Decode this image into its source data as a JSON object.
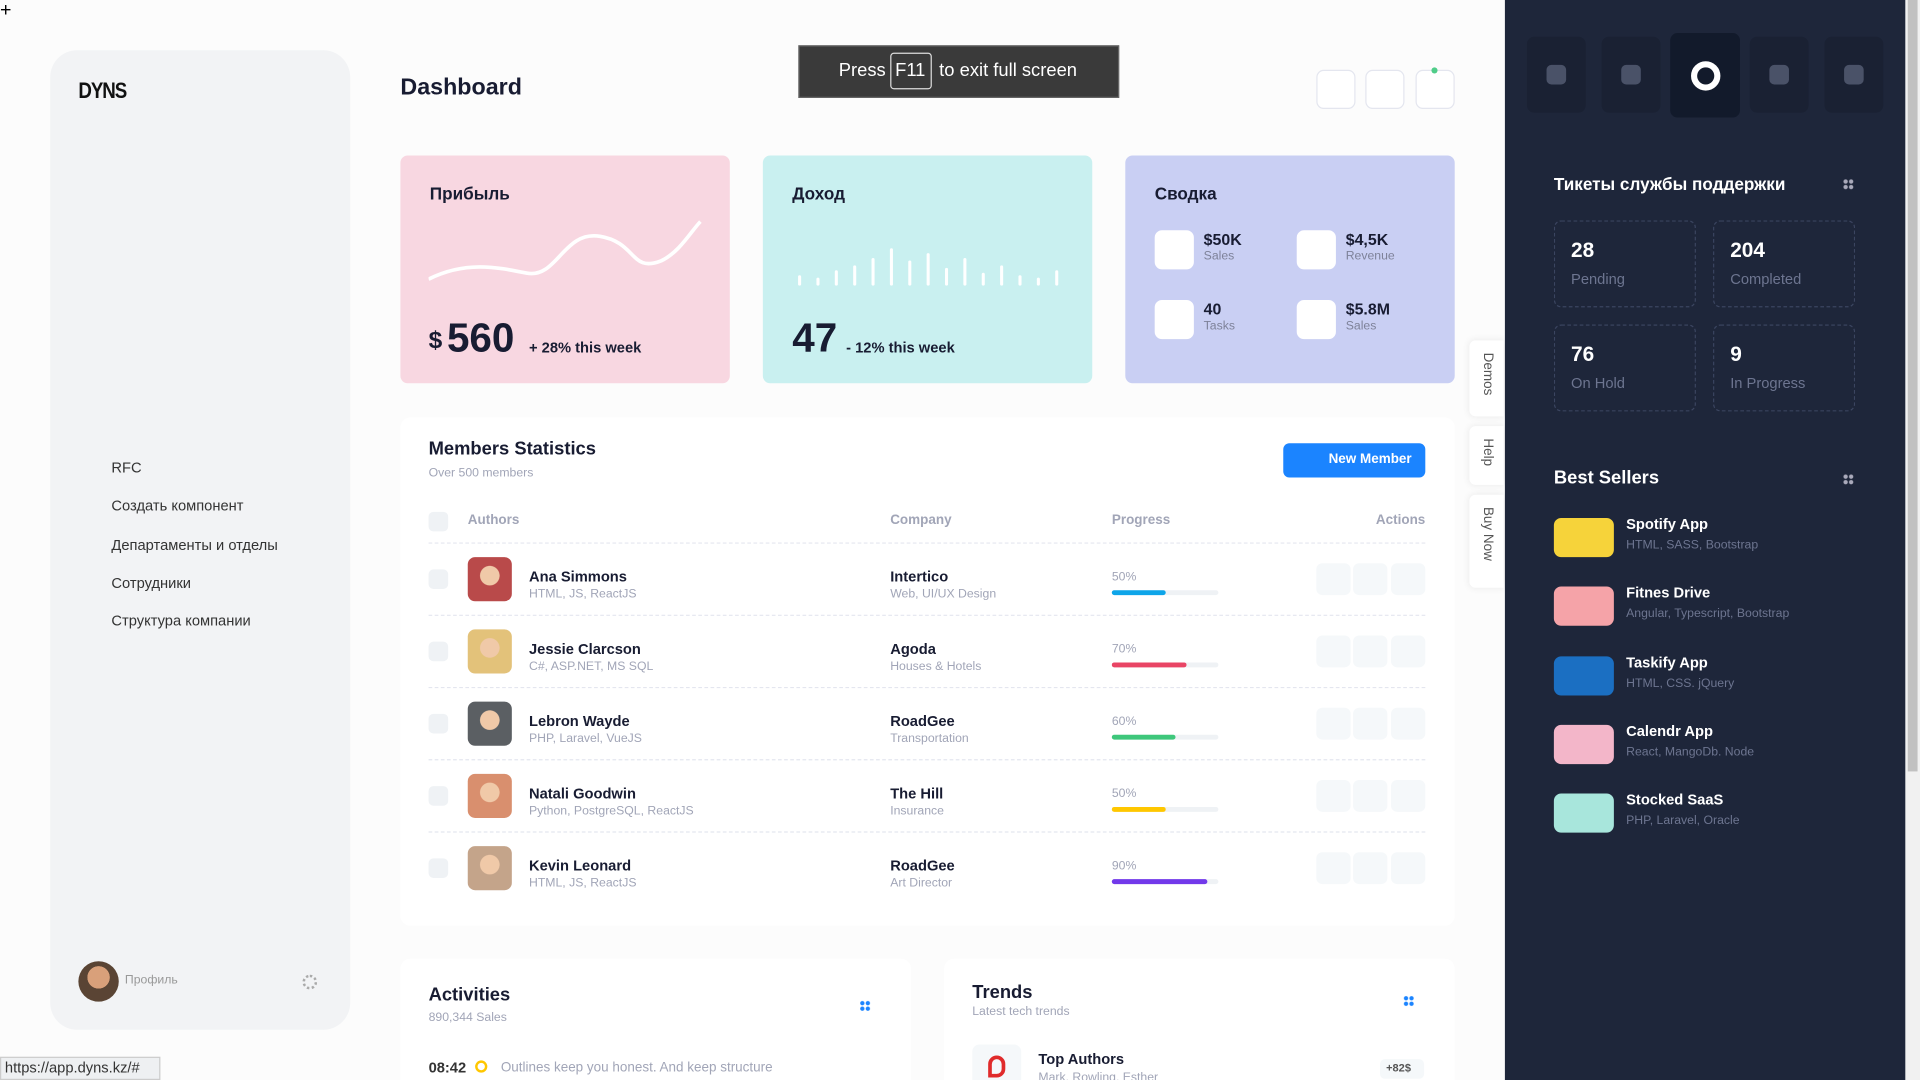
{
  "logo": "DYNS",
  "fullscreen_notice": {
    "before": "Press",
    "key": "F11",
    "after": "to exit full screen"
  },
  "nav": [
    "RFC",
    "Создать компонент",
    "Департаменты и отделы",
    "Сотрудники",
    "Структура компании"
  ],
  "profile": "Профиль",
  "page_title": "Dashboard",
  "cards": {
    "profit": {
      "title": "Прибыль",
      "currency": "$",
      "value": "560",
      "change": "+ 28% this week"
    },
    "income": {
      "title": "Доход",
      "value": "47",
      "change": "- 12% this week"
    },
    "summary": {
      "title": "Сводка",
      "items": [
        {
          "value": "$50K",
          "label": "Sales"
        },
        {
          "value": "$4,5K",
          "label": "Revenue"
        },
        {
          "value": "40",
          "label": "Tasks"
        },
        {
          "value": "$5.8M",
          "label": "Sales"
        }
      ]
    }
  },
  "members": {
    "title": "Members Statistics",
    "subtitle": "Over 500 members",
    "button": "New Member",
    "columns": [
      "Authors",
      "Company",
      "Progress",
      "Actions"
    ],
    "rows": [
      {
        "name": "Ana Simmons",
        "skills": "HTML, JS, ReactJS",
        "company": "Intertico",
        "company_detail": "Web, UI/UX Design",
        "progress": 50,
        "progress_label": "50%"
      },
      {
        "name": "Jessie Clarcson",
        "skills": "C#, ASP.NET, MS SQL",
        "company": "Agoda",
        "company_detail": "Houses & Hotels",
        "progress": 70,
        "progress_label": "70%"
      },
      {
        "name": "Lebron Wayde",
        "skills": "PHP, Laravel, VueJS",
        "company": "RoadGee",
        "company_detail": "Transportation",
        "progress": 60,
        "progress_label": "60%"
      },
      {
        "name": "Natali Goodwin",
        "skills": "Python, PostgreSQL, ReactJS",
        "company": "The Hill",
        "company_detail": "Insurance",
        "progress": 50,
        "progress_label": "50%"
      },
      {
        "name": "Kevin Leonard",
        "skills": "HTML, JS, ReactJS",
        "company": "RoadGee",
        "company_detail": "Art Director",
        "progress": 90,
        "progress_label": "90%"
      }
    ]
  },
  "side_tabs": [
    "Demos",
    "Help",
    "Buy Now"
  ],
  "activities": {
    "title": "Activities",
    "subtitle": "890,344 Sales",
    "items": [
      {
        "time": "08:42",
        "text": "Outlines keep you honest. And keep structure"
      }
    ]
  },
  "trends": {
    "title": "Trends",
    "subtitle": "Latest tech trends",
    "items": [
      {
        "name": "Top Authors",
        "detail": "Mark, Rowling, Esther",
        "badge": "+82$"
      }
    ]
  },
  "status_url": "https://app.dyns.kz/#",
  "tickets": {
    "title": "Тикеты службы поддержки",
    "items": [
      {
        "value": "28",
        "label": "Pending"
      },
      {
        "value": "204",
        "label": "Completed"
      },
      {
        "value": "76",
        "label": "On Hold"
      },
      {
        "value": "9",
        "label": "In Progress"
      }
    ]
  },
  "best_sellers": {
    "title": "Best Sellers",
    "items": [
      {
        "name": "Spotify App",
        "tech": "HTML, SASS, Bootstrap"
      },
      {
        "name": "Fitnes Drive",
        "tech": "Angular, Typescript, Bootstrap"
      },
      {
        "name": "Taskify App",
        "tech": "HTML, CSS. jQuery"
      },
      {
        "name": "Calendr App",
        "tech": "React, MangoDb. Node"
      },
      {
        "name": "Stocked SaaS",
        "tech": "PHP, Laravel, Oracle"
      }
    ]
  }
}
